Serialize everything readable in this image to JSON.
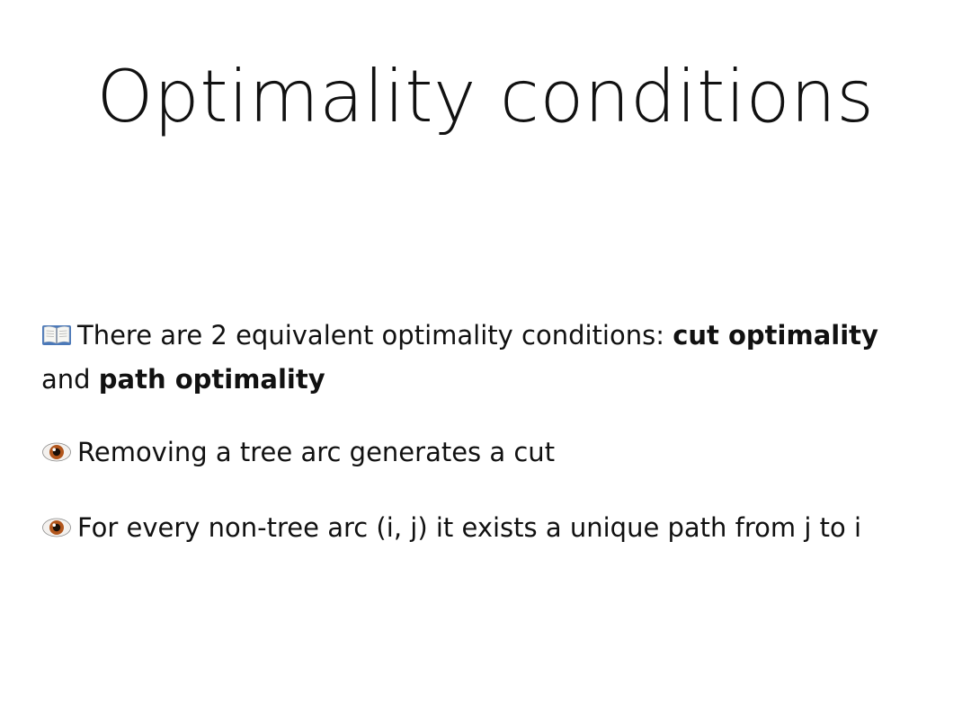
{
  "slide": {
    "title": "Optimality conditions",
    "bullets": [
      {
        "icon": "open-book-icon",
        "parts": {
          "lead": "There are 2 equivalent optimality conditions: ",
          "bold1": "cut optimality",
          "mid": " and ",
          "bold2": "path optimality"
        }
      },
      {
        "icon": "eye-icon",
        "text": "Removing a tree arc generates a cut"
      },
      {
        "icon": "eye-icon",
        "parts": {
          "t1": "For every non-tree arc (",
          "i1": "i",
          "t2": ", ",
          "j1": "j",
          "t3": ") it exists a unique path from ",
          "j2": "j",
          "t4": " to ",
          "i2": "i"
        }
      }
    ]
  }
}
